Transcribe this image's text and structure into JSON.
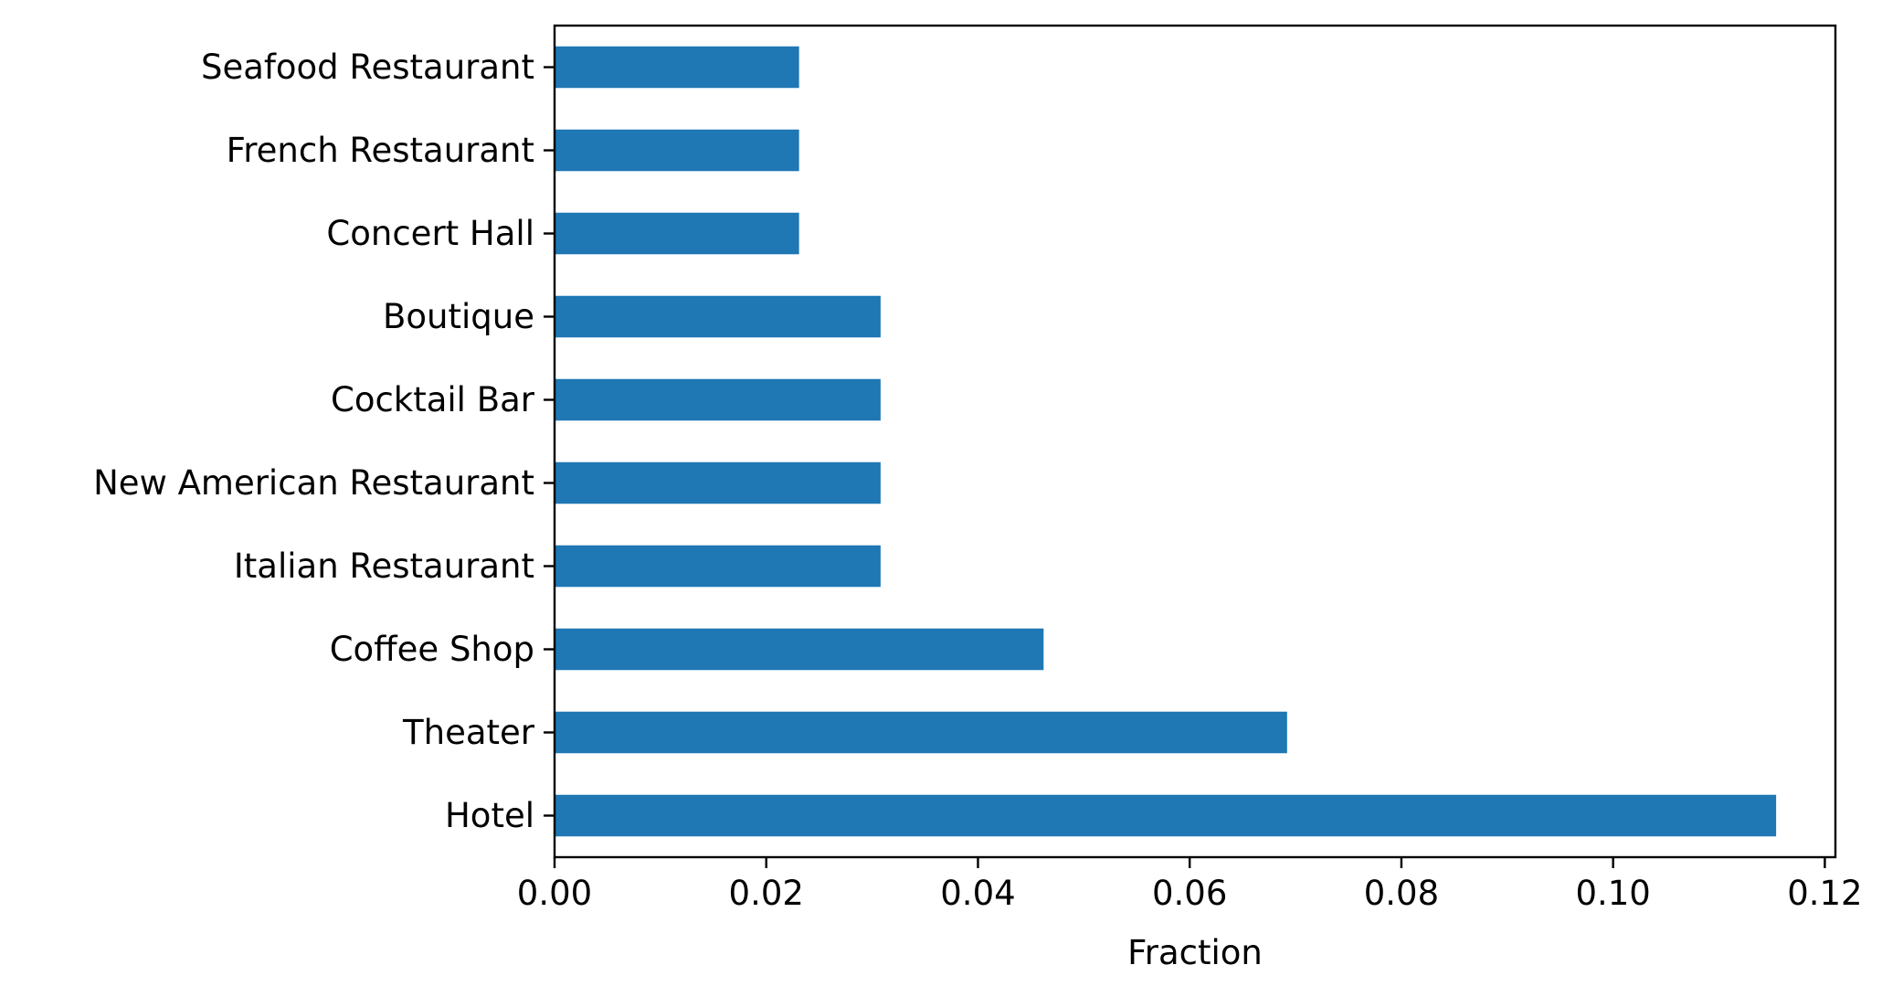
{
  "chart_data": {
    "type": "bar",
    "orientation": "horizontal",
    "categories": [
      "Hotel",
      "Theater",
      "Coffee Shop",
      "Italian Restaurant",
      "New American Restaurant",
      "Cocktail Bar",
      "Boutique",
      "Concert Hall",
      "French Restaurant",
      "Seafood Restaurant"
    ],
    "values": [
      0.1154,
      0.0692,
      0.0462,
      0.0308,
      0.0308,
      0.0308,
      0.0308,
      0.0231,
      0.0231,
      0.0231
    ],
    "xlabel": "Fraction",
    "ylabel": "",
    "xlim": [
      0.0,
      0.121
    ],
    "xticks": [
      "0.00",
      "0.02",
      "0.04",
      "0.06",
      "0.08",
      "0.10",
      "0.12"
    ],
    "grid": false,
    "bar_color": "#1f77b4"
  }
}
